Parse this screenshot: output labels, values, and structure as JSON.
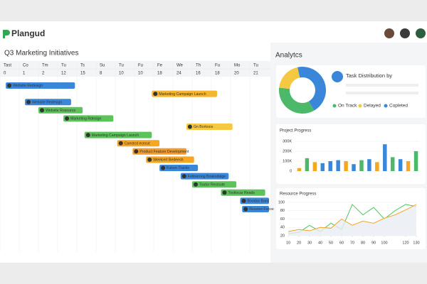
{
  "header": {
    "logo": "Plangud",
    "title": "Q3 Marketing Initiatives"
  },
  "timeline": {
    "days": [
      "Tast",
      "Co",
      "Tm",
      "Tu",
      "Ts",
      "Su",
      "Tu",
      "Fu",
      "Fe",
      "We",
      "Th",
      "Fu",
      "Mo",
      "Tu"
    ],
    "dates": [
      "0",
      "1",
      "2",
      "12",
      "15",
      "8",
      "10",
      "10",
      "18",
      "24",
      "16",
      "18",
      "20",
      "21"
    ]
  },
  "tasks": [
    {
      "name": "Website Redesign",
      "color": "#3a86d8",
      "start": 0.3,
      "end": 3.9
    },
    {
      "name": "Marketing Campaign Launch",
      "color": "#f5b52e",
      "start": 7.9,
      "end": 11.3
    },
    {
      "name": "Website Redesign",
      "color": "#3a86d8",
      "start": 1.3,
      "end": 3.7
    },
    {
      "name": "Website Rosource",
      "color": "#5cc35a",
      "start": 2,
      "end": 4.3
    },
    {
      "name": "Marketing Rdesign",
      "color": "#5cc35a",
      "start": 3.3,
      "end": 5.9
    },
    {
      "name": "Gn Borkoos",
      "color": "#f5c842",
      "start": 9.7,
      "end": 12.1
    },
    {
      "name": "Marketing Campaign Launch",
      "color": "#5cc35a",
      "start": 4.4,
      "end": 7.9
    },
    {
      "name": "Caeotcd ececut",
      "color": "#f5a623",
      "start": 6.1,
      "end": 8.3
    },
    {
      "name": "Product Feature Development",
      "color": "#f39a2a",
      "start": 6.9,
      "end": 9.7
    },
    {
      "name": "Weelcert Bedeesh",
      "color": "#f5a623",
      "start": 7.6,
      "end": 10.1
    },
    {
      "name": "Futurn Tracks",
      "color": "#3a86d8",
      "start": 8.3,
      "end": 10.3
    },
    {
      "name": "Feltnerong Boaksdalge",
      "color": "#3a86d8",
      "start": 9.4,
      "end": 11.9
    },
    {
      "name": "Toutor Reclsute",
      "color": "#5cc35a",
      "start": 10,
      "end": 12.3
    },
    {
      "name": "Tooltocar Reads",
      "color": "#5cc35a",
      "start": 11.5,
      "end": 13.8
    },
    {
      "name": "Boodas Banc",
      "color": "#3a86d8",
      "start": 12.5,
      "end": 14
    },
    {
      "name": "Resstes Fonxe",
      "color": "#3a86d8",
      "start": 12.6,
      "end": 14
    }
  ],
  "analytics": {
    "title": "Analytcs"
  },
  "chart_data": [
    {
      "type": "pie",
      "title": "Task Distribution by",
      "series": [
        {
          "name": "On Track",
          "color": "#4cb86a",
          "value": 35
        },
        {
          "name": "Delayed",
          "color": "#f5c842",
          "value": 20
        },
        {
          "name": "Copleted",
          "color": "#3a86d8",
          "value": 45
        }
      ]
    },
    {
      "type": "bar",
      "title": "Project Progress",
      "categories": [
        null,
        null,
        null,
        null,
        null,
        null,
        null,
        null,
        null,
        null,
        null,
        null,
        null,
        null,
        null,
        null
      ],
      "values": [
        30000,
        130000,
        90000,
        80000,
        100000,
        110000,
        100000,
        70000,
        110000,
        120000,
        90000,
        270000,
        140000,
        120000,
        100000,
        200000
      ],
      "colors": [
        "#f5a623",
        "#4cb86a",
        "#f5a623",
        "#3a86d8",
        "#3a86d8",
        "#3a86d8",
        "#f5a623",
        "#3a86d8",
        "#4cb86a",
        "#3a86d8",
        "#f5a623",
        "#3a86d8",
        "#4cb86a",
        "#3a86d8",
        "#f5a623",
        "#4cb86a"
      ],
      "ylim": [
        0,
        300000
      ],
      "yticks": [
        {
          "value": 0,
          "label": "0"
        },
        {
          "value": 100000,
          "label": "100K"
        },
        {
          "value": 200000,
          "label": "200K"
        },
        {
          "value": 300000,
          "label": "300K"
        }
      ],
      "grid": true
    },
    {
      "type": "line",
      "title": "Resource Progress",
      "x": [
        10,
        20,
        30,
        40,
        50,
        60,
        70,
        80,
        90,
        100,
        110,
        120,
        130
      ],
      "series": [
        {
          "name": null,
          "color": "#4cc45a",
          "values": [
            25,
            28,
            45,
            30,
            50,
            35,
            95,
            70,
            88,
            60,
            80,
            95,
            90
          ]
        },
        {
          "name": null,
          "color": "#f5a623",
          "values": [
            30,
            35,
            32,
            40,
            38,
            60,
            45,
            55,
            50,
            62,
            70,
            82,
            95
          ]
        }
      ],
      "xlim": [
        10,
        130
      ],
      "xticks": [
        10,
        20,
        30,
        40,
        50,
        60,
        70,
        80,
        90,
        100,
        120,
        130
      ],
      "ylim": [
        20,
        100
      ],
      "yticks": [
        20,
        40,
        60,
        80,
        100
      ],
      "grid": true
    }
  ]
}
